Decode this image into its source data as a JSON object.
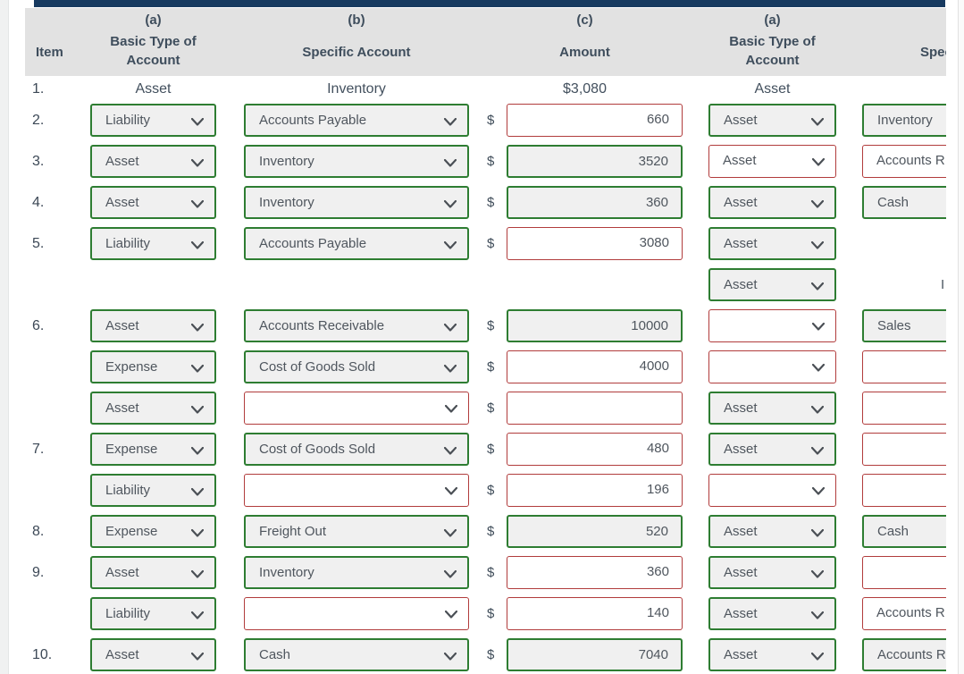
{
  "colors": {
    "accent_bar": "#173a60",
    "correct_border": "#2e7d32",
    "correct_bg": "#f0f0f0",
    "incorrect_border": "#b13c3c",
    "header_bg": "#e2e2e2"
  },
  "currency_symbol": "$",
  "header": {
    "item": "Item",
    "col_a_tag": "(a)",
    "col_a_line1": "Basic Type of",
    "col_a_line2": "Account",
    "col_b_tag": "(b)",
    "col_b_label": "Specific Account",
    "col_c_tag": "(c)",
    "col_c_label": "Amount",
    "col_a2_tag": "(a)",
    "col_a2_line1": "Basic Type of",
    "col_a2_line2": "Account",
    "col_spec2_label": "Spec"
  },
  "static_row": {
    "item": "1.",
    "basic_type": "Asset",
    "specific_account": "Inventory",
    "amount": "$3,080",
    "basic_type_2": "Asset"
  },
  "rows": [
    {
      "item": "2.",
      "a": {
        "value": "Liability",
        "state": "correct"
      },
      "b": {
        "value": "Accounts Payable",
        "state": "correct"
      },
      "c": {
        "value": "660",
        "state": "incorrect"
      },
      "a2": {
        "value": "Asset",
        "state": "correct"
      },
      "spec2": {
        "value": "Inventory",
        "state": "correct"
      }
    },
    {
      "item": "3.",
      "a": {
        "value": "Asset",
        "state": "correct"
      },
      "b": {
        "value": "Inventory",
        "state": "correct"
      },
      "c": {
        "value": "3520",
        "state": "correct"
      },
      "a2": {
        "value": "Asset",
        "state": "incorrect"
      },
      "spec2": {
        "value": "Accounts R",
        "state": "incorrect"
      }
    },
    {
      "item": "4.",
      "a": {
        "value": "Asset",
        "state": "correct"
      },
      "b": {
        "value": "Inventory",
        "state": "correct"
      },
      "c": {
        "value": "360",
        "state": "correct"
      },
      "a2": {
        "value": "Asset",
        "state": "correct"
      },
      "spec2": {
        "value": "Cash",
        "state": "correct"
      }
    },
    {
      "item": "5.",
      "a": {
        "value": "Liability",
        "state": "correct"
      },
      "b": {
        "value": "Accounts Payable",
        "state": "correct"
      },
      "c": {
        "value": "3080",
        "state": "incorrect"
      },
      "a2": {
        "value": "Asset",
        "state": "correct"
      },
      "spec2": null
    },
    {
      "item": null,
      "a": null,
      "b": null,
      "c": null,
      "a2": {
        "value": "Asset",
        "state": "correct"
      },
      "spec2": null,
      "spec2_static": "I"
    },
    {
      "item": "6.",
      "a": {
        "value": "Asset",
        "state": "correct"
      },
      "b": {
        "value": "Accounts Receivable",
        "state": "correct"
      },
      "c": {
        "value": "10000",
        "state": "correct"
      },
      "a2": {
        "value": "",
        "state": "incorrect"
      },
      "spec2": {
        "value": "Sales",
        "state": "correct"
      }
    },
    {
      "item": null,
      "a": {
        "value": "Expense",
        "state": "correct"
      },
      "b": {
        "value": "Cost of Goods Sold",
        "state": "correct"
      },
      "c": {
        "value": "4000",
        "state": "incorrect"
      },
      "a2": {
        "value": "",
        "state": "incorrect"
      },
      "spec2": {
        "value": "",
        "state": "incorrect"
      }
    },
    {
      "item": null,
      "a": {
        "value": "Asset",
        "state": "correct"
      },
      "b": {
        "value": "",
        "state": "incorrect"
      },
      "c": {
        "value": "",
        "state": "incorrect"
      },
      "a2": {
        "value": "Asset",
        "state": "correct"
      },
      "spec2": {
        "value": "",
        "state": "incorrect"
      }
    },
    {
      "item": "7.",
      "a": {
        "value": "Expense",
        "state": "correct"
      },
      "b": {
        "value": "Cost of Goods Sold",
        "state": "correct"
      },
      "c": {
        "value": "480",
        "state": "incorrect"
      },
      "a2": {
        "value": "Asset",
        "state": "correct"
      },
      "spec2": {
        "value": "",
        "state": "incorrect"
      }
    },
    {
      "item": null,
      "a": {
        "value": "Liability",
        "state": "correct"
      },
      "b": {
        "value": "",
        "state": "incorrect"
      },
      "c": {
        "value": "196",
        "state": "incorrect"
      },
      "a2": {
        "value": "",
        "state": "incorrect"
      },
      "spec2": {
        "value": "",
        "state": "incorrect"
      }
    },
    {
      "item": "8.",
      "a": {
        "value": "Expense",
        "state": "correct"
      },
      "b": {
        "value": "Freight Out",
        "state": "correct"
      },
      "c": {
        "value": "520",
        "state": "correct"
      },
      "a2": {
        "value": "Asset",
        "state": "correct"
      },
      "spec2": {
        "value": "Cash",
        "state": "correct"
      }
    },
    {
      "item": "9.",
      "a": {
        "value": "Asset",
        "state": "correct"
      },
      "b": {
        "value": "Inventory",
        "state": "correct"
      },
      "c": {
        "value": "360",
        "state": "incorrect"
      },
      "a2": {
        "value": "Asset",
        "state": "correct"
      },
      "spec2": {
        "value": "",
        "state": "incorrect"
      }
    },
    {
      "item": null,
      "a": {
        "value": "Liability",
        "state": "correct"
      },
      "b": {
        "value": "",
        "state": "incorrect"
      },
      "c": {
        "value": "140",
        "state": "incorrect"
      },
      "a2": {
        "value": "Asset",
        "state": "correct"
      },
      "spec2": {
        "value": "Accounts R",
        "state": "incorrect"
      }
    },
    {
      "item": "10.",
      "a": {
        "value": "Asset",
        "state": "correct"
      },
      "b": {
        "value": "Cash",
        "state": "correct"
      },
      "c": {
        "value": "7040",
        "state": "correct"
      },
      "a2": {
        "value": "Asset",
        "state": "correct"
      },
      "spec2": {
        "value": "Accounts R",
        "state": "correct"
      }
    }
  ]
}
